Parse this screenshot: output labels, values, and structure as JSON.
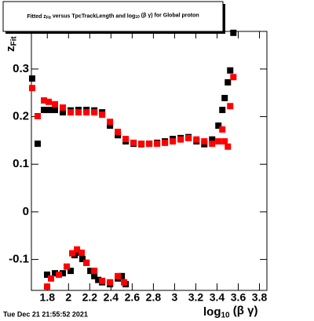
{
  "chart_data": {
    "type": "scatter",
    "title": [
      "Fitted  z",
      "Fit",
      "  versus TpcTrackLength and log",
      "10",
      " (β γ) for Global proton"
    ],
    "y_label": [
      "z",
      "Fit"
    ],
    "x_label": [
      "log",
      "10",
      " (β γ)"
    ],
    "date": "Tue Dec 21 21:55:52 2021",
    "xlim": [
      1.65,
      3.87
    ],
    "ylim": [
      -0.165,
      0.379
    ],
    "xticks": [
      1.8,
      2,
      2.2,
      2.4,
      2.6,
      2.8,
      3,
      3.2,
      3.4,
      3.6,
      3.8
    ],
    "yticks": [
      -0.1,
      0,
      0.1,
      0.2,
      0.3
    ],
    "series": [
      {
        "color": "#000000",
        "x": [
          1.657,
          1.709,
          1.769,
          1.813,
          1.872,
          1.946,
          2.02,
          2.094,
          2.169,
          2.243,
          2.317,
          2.391,
          2.465,
          2.539,
          2.613,
          2.687,
          2.761,
          2.835,
          2.909,
          2.983,
          3.057,
          3.131,
          3.206,
          3.28,
          3.354,
          3.413,
          3.45,
          3.472,
          3.502,
          3.524,
          3.554
        ],
        "values": [
          0.28,
          0.143,
          0.214,
          0.214,
          0.214,
          0.209,
          0.213,
          0.214,
          0.214,
          0.213,
          0.209,
          0.181,
          0.161,
          0.148,
          0.143,
          0.142,
          0.143,
          0.145,
          0.148,
          0.153,
          0.155,
          0.157,
          0.148,
          0.142,
          0.152,
          0.181,
          0.214,
          0.239,
          0.272,
          0.297,
          0.376
        ]
      },
      {
        "color": "#000000",
        "x": [
          1.798,
          1.872,
          1.946,
          2.02,
          2.057,
          2.094,
          2.131,
          2.169,
          2.206,
          2.243,
          2.28,
          2.317,
          2.391,
          2.465,
          2.502,
          2.539
        ],
        "values": [
          -0.132,
          -0.129,
          -0.129,
          -0.124,
          -0.091,
          -0.086,
          -0.099,
          -0.107,
          -0.124,
          -0.135,
          -0.143,
          -0.148,
          -0.152,
          -0.14,
          -0.135,
          -0.152
        ]
      },
      {
        "color": "#ff0000",
        "x": [
          1.657,
          1.709,
          1.769,
          1.813,
          1.872,
          1.946,
          2.02,
          2.094,
          2.169,
          2.243,
          2.317,
          2.391,
          2.465,
          2.539,
          2.613,
          2.687,
          2.761,
          2.835,
          2.909,
          2.983,
          3.057,
          3.131,
          3.206,
          3.28,
          3.354,
          3.413,
          3.45,
          3.472,
          3.502,
          3.524,
          3.554
        ],
        "values": [
          0.26,
          0.201,
          0.234,
          0.231,
          0.226,
          0.219,
          0.209,
          0.209,
          0.209,
          0.209,
          0.204,
          0.189,
          0.168,
          0.153,
          0.145,
          0.143,
          0.143,
          0.143,
          0.145,
          0.148,
          0.152,
          0.155,
          0.152,
          0.148,
          0.143,
          0.148,
          0.173,
          0.148,
          0.137,
          0.222,
          0.283
        ]
      },
      {
        "color": "#ff0000",
        "x": [
          1.798,
          1.835,
          1.909,
          1.983,
          2.035,
          2.08,
          2.124,
          2.169,
          2.243,
          2.317,
          2.391,
          2.465,
          2.524
        ],
        "values": [
          -0.157,
          -0.14,
          -0.132,
          -0.115,
          -0.087,
          -0.079,
          -0.086,
          -0.107,
          -0.124,
          -0.145,
          -0.148,
          -0.135,
          -0.148
        ]
      }
    ]
  }
}
